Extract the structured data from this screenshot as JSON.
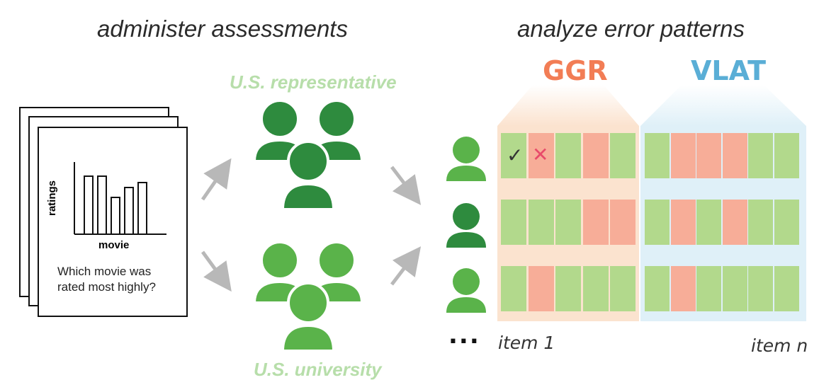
{
  "headings": {
    "left": "administer assessments",
    "right": "analyze error patterns"
  },
  "groups": {
    "top": "U.S. representative",
    "bottom": "U.S. university"
  },
  "tests": [
    {
      "label": "GGR",
      "color": "#f27d55"
    },
    {
      "label": "VLAT",
      "color": "#5aaed6"
    }
  ],
  "assessment_card": {
    "y_label": "ratings",
    "x_label": "movie",
    "question": "Which movie was rated most highly?"
  },
  "items": {
    "first": "item 1",
    "last": "item n",
    "ellipsis": "..."
  },
  "marks": {
    "correct": "✓",
    "incorrect": "✕"
  },
  "colors": {
    "correct_cell": "#b2d98c",
    "incorrect_cell": "#f7ad98",
    "dark_green": "#2e8b3e",
    "light_green": "#5ab34a",
    "arrow": "#b8b8b8"
  },
  "response_rows": [
    {
      "person": "light",
      "ggr": [
        "correct",
        "incorrect",
        "correct",
        "incorrect",
        "correct"
      ],
      "vlat": [
        "correct",
        "incorrect",
        "incorrect",
        "incorrect",
        "correct",
        "correct"
      ]
    },
    {
      "person": "dark",
      "ggr": [
        "correct",
        "correct",
        "correct",
        "incorrect",
        "incorrect"
      ],
      "vlat": [
        "correct",
        "incorrect",
        "correct",
        "incorrect",
        "correct",
        "correct"
      ]
    },
    {
      "person": "light",
      "ggr": [
        "correct",
        "incorrect",
        "correct",
        "correct",
        "correct"
      ],
      "vlat": [
        "correct",
        "incorrect",
        "correct",
        "correct",
        "correct",
        "correct"
      ]
    }
  ]
}
